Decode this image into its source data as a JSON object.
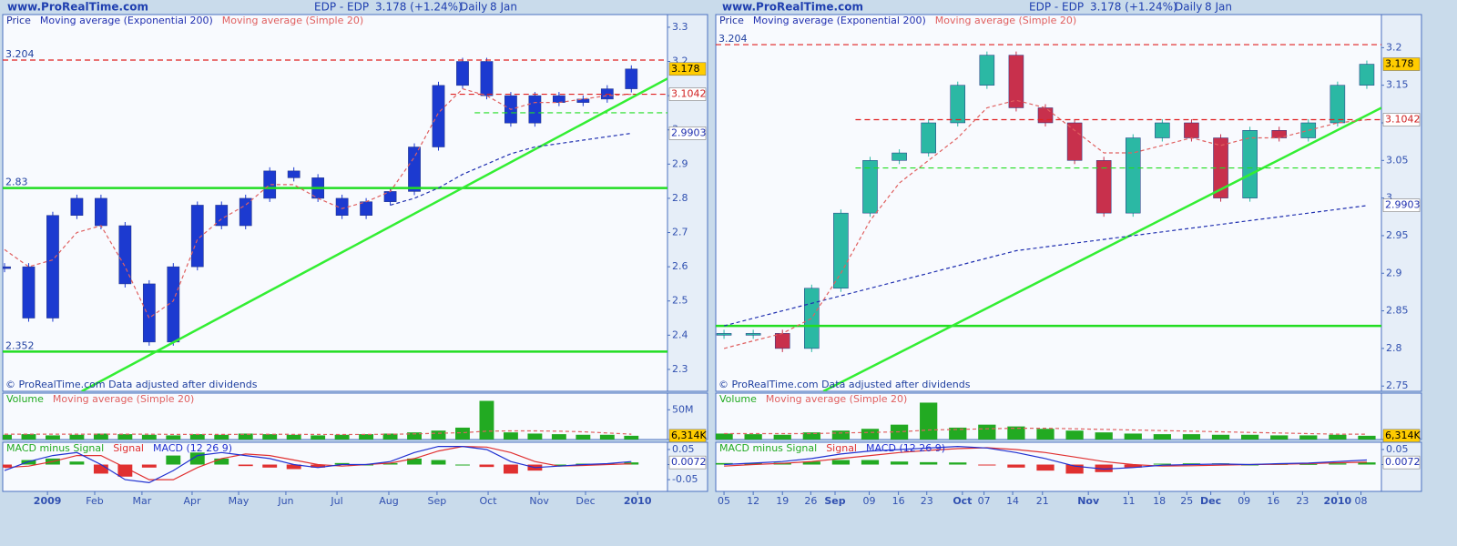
{
  "chart_data": [
    {
      "type": "candlestick",
      "site": "www.ProRealTime.com",
      "title": "EDP - EDP",
      "quote": "3.178 (+1.24%)",
      "period": "Daily",
      "date": "8 Jan",
      "footer": "© ProRealTime.com  Data adjusted after dividends",
      "xlim": [
        0,
        27.5
      ],
      "ylim": [
        2.236,
        3.337
      ],
      "yticks": [
        2.3,
        2.4,
        2.5,
        2.6,
        2.7,
        2.8,
        2.9,
        3,
        3.1,
        3.2,
        3.3
      ],
      "xticks": [
        {
          "value": 1.78,
          "label": "2009",
          "major": true
        },
        {
          "value": 3.74,
          "label": "Feb"
        },
        {
          "value": 5.7,
          "label": "Mar"
        },
        {
          "value": 7.78,
          "label": "Apr"
        },
        {
          "value": 9.71,
          "label": "May"
        },
        {
          "value": 11.67,
          "label": "Jun"
        },
        {
          "value": 13.79,
          "label": "Jul"
        },
        {
          "value": 15.94,
          "label": "Aug"
        },
        {
          "value": 17.94,
          "label": "Sep"
        },
        {
          "value": 20.06,
          "label": "Oct"
        },
        {
          "value": 22.18,
          "label": "Nov"
        },
        {
          "value": 24.1,
          "label": "Dec"
        },
        {
          "value": 26.26,
          "label": "2010",
          "major": true
        }
      ],
      "candles": {
        "name": "Price",
        "up_color": "#1c3ad0",
        "down_color": "#1c3ad0",
        "values": [
          2.6,
          2.45,
          2.75,
          2.8,
          2.72,
          2.55,
          2.38,
          2.6,
          2.78,
          2.72,
          2.8,
          2.88,
          2.86,
          2.8,
          2.75,
          2.79,
          2.82,
          2.95,
          3.13,
          3.2,
          3.1,
          3.02,
          3.1,
          3.08,
          3.09,
          3.12,
          3.178
        ]
      },
      "series": [
        {
          "name": "Moving average (Exponential 200)",
          "color": "#1f2fb0",
          "style": "dashed",
          "values": [
            null,
            null,
            null,
            null,
            null,
            null,
            null,
            null,
            null,
            null,
            null,
            null,
            null,
            null,
            null,
            null,
            2.78,
            2.8,
            2.83,
            2.87,
            2.9,
            2.93,
            2.95,
            2.96,
            2.97,
            2.98,
            2.99
          ]
        },
        {
          "name": "Moving average (Simple 20)",
          "color": "#e06060",
          "style": "dashed",
          "values": [
            2.65,
            2.6,
            2.62,
            2.7,
            2.72,
            2.6,
            2.45,
            2.5,
            2.68,
            2.74,
            2.78,
            2.84,
            2.84,
            2.8,
            2.77,
            2.79,
            2.82,
            2.92,
            3.05,
            3.12,
            3.1,
            3.06,
            3.08,
            3.08,
            3.09,
            3.1,
            3.104
          ]
        }
      ],
      "levels": [
        {
          "value": 3.204,
          "color": "#e02020",
          "dash": true,
          "printed": true
        },
        {
          "value": 2.83,
          "color": "#22dd22",
          "dash": false,
          "printed": true
        },
        {
          "value": 2.352,
          "color": "#22dd22",
          "dash": false,
          "printed": true
        },
        {
          "value": 3.1042,
          "color": "#e02020",
          "dash": true,
          "printed": false,
          "x": [
            18.5,
            27.5
          ]
        },
        {
          "value": 3.05,
          "color": "#22dd22",
          "dash": true,
          "printed": false,
          "x": [
            19.5,
            27.5
          ]
        }
      ],
      "trendline": {
        "color": "#33ee33",
        "x": [
          3.2,
          27.5
        ],
        "y": [
          2.236,
          3.15
        ]
      },
      "badges": [
        {
          "value": 3.178,
          "fill": "#ffcc00",
          "color": "#000000"
        },
        {
          "value": 3.1042,
          "fill": "#ffffff",
          "color": "#d02020"
        },
        {
          "value": 2.9903,
          "fill": "#ffffff",
          "color": "#2030b0"
        }
      ]
    },
    {
      "type": "bar",
      "ylim": [
        0,
        78
      ],
      "yticks": [
        {
          "value": 50,
          "label": "50M"
        }
      ],
      "series": [
        {
          "name": "Volume",
          "color": "#22aa22",
          "style": "bar",
          "values": [
            8,
            9,
            7,
            8,
            10,
            9,
            8,
            7,
            9,
            8,
            10,
            9,
            8,
            7,
            8,
            9,
            10,
            12,
            15,
            20,
            65,
            12,
            10,
            9,
            8,
            8,
            6.314
          ]
        },
        {
          "name": "Moving average (Simple 20)",
          "color": "#e06060",
          "style": "dashed",
          "values": [
            9,
            9,
            9,
            9,
            9,
            9,
            9,
            8.5,
            8.5,
            8.5,
            8.7,
            8.8,
            8.7,
            8.5,
            8.4,
            8.5,
            8.8,
            9.5,
            10.5,
            11.5,
            14,
            14.5,
            14.5,
            14,
            13,
            11,
            9
          ]
        }
      ],
      "badges": [
        {
          "value": 6.314,
          "label": "6,314K",
          "fill": "#ffcc00",
          "color": "#000000"
        }
      ]
    },
    {
      "type": "line",
      "ylim": [
        -0.089,
        0.074
      ],
      "yticks": [
        -0.05,
        0,
        0.05
      ],
      "series": [
        {
          "name": "MACD minus Signal",
          "color": "#22aa22",
          "neg_color": "#e03030",
          "style": "bar",
          "values": [
            -0.01,
            0.015,
            0.02,
            0.01,
            -0.03,
            -0.04,
            -0.01,
            0.03,
            0.04,
            0.02,
            -0.005,
            -0.01,
            -0.015,
            -0.01,
            0.005,
            0,
            0.005,
            0.02,
            0.015,
            0,
            -0.008,
            -0.03,
            -0.02,
            0,
            0.003,
            0.003,
            0.0072
          ]
        },
        {
          "name": "Signal",
          "color": "#e03030",
          "style": "line",
          "values": [
            -0.01,
            -0.005,
            0.01,
            0.03,
            0.03,
            -0.01,
            -0.05,
            -0.05,
            -0.01,
            0.02,
            0.035,
            0.03,
            0.015,
            0,
            -0.005,
            0,
            0.005,
            0.02,
            0.045,
            0.06,
            0.058,
            0.04,
            0.01,
            -0.005,
            -0.003,
            0,
            0.0028
          ]
        },
        {
          "name": "MACD (12 26 9)",
          "color": "#2030d0",
          "style": "line",
          "values": [
            -0.02,
            0.01,
            0.03,
            0.04,
            0,
            -0.05,
            -0.06,
            -0.02,
            0.03,
            0.04,
            0.03,
            0.02,
            0,
            -0.01,
            0,
            0,
            0.01,
            0.04,
            0.06,
            0.06,
            0.05,
            0.01,
            -0.01,
            -0.005,
            0,
            0.003,
            0.01
          ]
        }
      ],
      "badges": [
        {
          "value": 0.0072,
          "fill": "#ffffff",
          "color": "#2030b0"
        }
      ]
    },
    {
      "type": "candlestick",
      "site": "www.ProRealTime.com",
      "title": "EDP - EDP",
      "quote": "3.178 (+1.24%)",
      "period": "Daily",
      "date": "8 Jan",
      "footer": "© ProRealTime.com  Data adjusted after dividends",
      "xlim": [
        -0.22,
        22.5
      ],
      "ylim": [
        2.743,
        3.244
      ],
      "yticks": [
        2.75,
        2.8,
        2.85,
        2.9,
        2.95,
        3,
        3.05,
        3.1,
        3.15,
        3.2
      ],
      "xticks": [
        {
          "value": 0,
          "label": "05"
        },
        {
          "value": 1,
          "label": "12"
        },
        {
          "value": 2,
          "label": "19"
        },
        {
          "value": 2.97,
          "label": "26"
        },
        {
          "value": 3.8,
          "label": "Sep",
          "major": true
        },
        {
          "value": 4.97,
          "label": "09"
        },
        {
          "value": 5.97,
          "label": "16"
        },
        {
          "value": 6.94,
          "label": "23"
        },
        {
          "value": 8.16,
          "label": "Oct",
          "major": true
        },
        {
          "value": 8.9,
          "label": "07"
        },
        {
          "value": 9.88,
          "label": "14"
        },
        {
          "value": 10.9,
          "label": "21"
        },
        {
          "value": 12.47,
          "label": "Nov",
          "major": true
        },
        {
          "value": 13.85,
          "label": "11"
        },
        {
          "value": 14.9,
          "label": "18"
        },
        {
          "value": 15.84,
          "label": "25"
        },
        {
          "value": 16.66,
          "label": "Dec",
          "major": true
        },
        {
          "value": 17.8,
          "label": "09"
        },
        {
          "value": 18.8,
          "label": "16"
        },
        {
          "value": 19.8,
          "label": "23"
        },
        {
          "value": 21,
          "label": "2010",
          "major": true
        },
        {
          "value": 21.8,
          "label": "08"
        }
      ],
      "candles": {
        "name": "Price",
        "up_color": "#2bb8a4",
        "down_color": "#c8304c",
        "values": [
          2.82,
          2.82,
          2.8,
          2.88,
          2.98,
          3.05,
          3.06,
          3.1,
          3.15,
          3.19,
          3.12,
          3.1,
          3.05,
          2.98,
          3.08,
          3.1,
          3.08,
          3,
          3.09,
          3.08,
          3.1,
          3.15,
          3.178
        ]
      },
      "series": [
        {
          "name": "Moving average (Exponential 200)",
          "color": "#1f2fb0",
          "style": "dashed",
          "values": [
            2.83,
            2.84,
            2.85,
            2.86,
            2.87,
            2.88,
            2.89,
            2.9,
            2.91,
            2.92,
            2.93,
            2.935,
            2.94,
            2.945,
            2.95,
            2.955,
            2.96,
            2.965,
            2.97,
            2.975,
            2.98,
            2.985,
            2.99
          ]
        },
        {
          "name": "Moving average (Simple 20)",
          "color": "#e06060",
          "style": "dashed",
          "values": [
            2.8,
            2.81,
            2.82,
            2.84,
            2.9,
            2.97,
            3.02,
            3.05,
            3.08,
            3.12,
            3.13,
            3.12,
            3.09,
            3.06,
            3.06,
            3.07,
            3.08,
            3.07,
            3.08,
            3.08,
            3.09,
            3.1,
            3.104
          ]
        }
      ],
      "levels": [
        {
          "value": 3.204,
          "color": "#e02020",
          "dash": true,
          "printed": true
        },
        {
          "value": 2.83,
          "color": "#22dd22",
          "dash": false,
          "printed": false
        },
        {
          "value": 3.1042,
          "color": "#e02020",
          "dash": true,
          "printed": false,
          "x": [
            4.5,
            22.5
          ]
        },
        {
          "value": 3.04,
          "color": "#22dd22",
          "dash": true,
          "printed": false,
          "x": [
            4.5,
            22.5
          ]
        }
      ],
      "trendline": {
        "color": "#33ee33",
        "x": [
          3.4,
          22.5
        ],
        "y": [
          2.743,
          3.12
        ]
      },
      "badges": [
        {
          "value": 3.178,
          "fill": "#ffcc00",
          "color": "#000000"
        },
        {
          "value": 3.1042,
          "fill": "#ffffff",
          "color": "#d02020"
        },
        {
          "value": 2.9903,
          "fill": "#ffffff",
          "color": "#2030b0"
        }
      ]
    },
    {
      "type": "bar",
      "ylim": [
        0,
        78
      ],
      "yticks": [],
      "series": [
        {
          "name": "Volume",
          "color": "#22aa22",
          "style": "bar",
          "values": [
            10,
            9,
            8,
            12,
            15,
            18,
            25,
            62,
            20,
            25,
            22,
            18,
            15,
            12,
            10,
            9,
            9,
            8,
            8,
            7,
            7,
            8,
            6.314
          ]
        },
        {
          "name": "Moving average (Simple 20)",
          "color": "#e06060",
          "style": "dashed",
          "values": [
            10,
            10,
            10,
            10,
            11,
            12,
            13,
            16,
            17,
            18,
            19,
            19,
            18,
            17,
            16,
            15,
            14,
            13,
            12,
            11,
            10,
            9,
            9
          ]
        }
      ],
      "badges": [
        {
          "value": 6.314,
          "label": "6,314K",
          "fill": "#ffcc00",
          "color": "#000000"
        }
      ]
    },
    {
      "type": "line",
      "ylim": [
        -0.089,
        0.074
      ],
      "yticks": [
        0,
        0.05
      ],
      "series": [
        {
          "name": "MACD minus Signal",
          "color": "#22aa22",
          "neg_color": "#e03030",
          "style": "bar",
          "values": [
            0.005,
            0.005,
            0.006,
            0.01,
            0.015,
            0.015,
            0.01,
            0.008,
            0.007,
            -0.001,
            -0.01,
            -0.02,
            -0.03,
            -0.025,
            -0.01,
            0.003,
            0.004,
            0.004,
            0,
            0.002,
            0.002,
            0.004,
            0.0072
          ]
        },
        {
          "name": "Signal",
          "color": "#e03030",
          "style": "line",
          "values": [
            -0.005,
            0,
            0.004,
            0.01,
            0.02,
            0.03,
            0.04,
            0.047,
            0.053,
            0.056,
            0.05,
            0.04,
            0.025,
            0.01,
            0,
            -0.005,
            -0.004,
            -0.002,
            0,
            0.001,
            0.003,
            0.006,
            0.0078
          ]
        },
        {
          "name": "MACD (12 26 9)",
          "color": "#2030d0",
          "style": "line",
          "values": [
            0,
            0.005,
            0.01,
            0.02,
            0.035,
            0.045,
            0.05,
            0.055,
            0.06,
            0.055,
            0.04,
            0.02,
            -0.005,
            -0.015,
            -0.01,
            -0.002,
            0,
            0.002,
            0,
            0.003,
            0.005,
            0.01,
            0.015
          ]
        }
      ],
      "badges": [
        {
          "value": 0.0072,
          "fill": "#ffffff",
          "color": "#2030b0"
        }
      ]
    }
  ]
}
